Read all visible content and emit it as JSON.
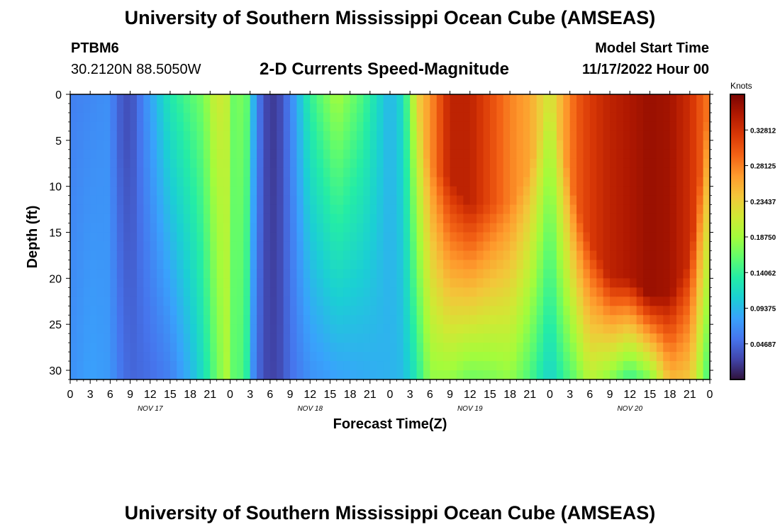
{
  "header": {
    "title": "University of Southern Mississippi Ocean Cube (AMSEAS)",
    "station_id": "PTBM6",
    "coordinates": "30.2120N  88.5050W",
    "subtitle": "2-D Currents Speed-Magnitude",
    "start_label": "Model Start Time",
    "start_value": "11/17/2022 Hour 00"
  },
  "footer": {
    "title": "University of Southern Mississippi Ocean Cube (AMSEAS)"
  },
  "chart_data": {
    "type": "heatmap",
    "title": "2-D Currents Speed-Magnitude",
    "xlabel": "Forecast Time(Z)",
    "ylabel": "Depth (ft)",
    "x_range_hours": [
      0,
      96
    ],
    "y_range_ft": [
      0,
      31
    ],
    "y_inverted": true,
    "xticks": [
      "0",
      "3",
      "6",
      "9",
      "12",
      "15",
      "18",
      "21",
      "0",
      "3",
      "6",
      "9",
      "12",
      "15",
      "18",
      "21",
      "0",
      "3",
      "6",
      "9",
      "12",
      "15",
      "18",
      "21",
      "0",
      "3",
      "6",
      "9",
      "12",
      "15",
      "18",
      "21",
      "0"
    ],
    "yticks": [
      0,
      5,
      10,
      15,
      20,
      25,
      30
    ],
    "day_labels": [
      {
        "label": "NOV 17",
        "hour": 12
      },
      {
        "label": "NOV 18",
        "hour": 36
      },
      {
        "label": "NOV 19",
        "hour": 60
      },
      {
        "label": "NOV 20",
        "hour": 84
      }
    ],
    "colorbar": {
      "unit": "Knots",
      "min": 0.0,
      "max": 0.375,
      "ticks": [
        "0.32812",
        "0.28125",
        "0.23437",
        "0.18750",
        "0.14062",
        "0.09375",
        "0.04687"
      ],
      "tick_values": [
        0.32812,
        0.28125,
        0.23437,
        0.1875,
        0.14062,
        0.09375,
        0.04687
      ],
      "colors": [
        "#30123b",
        "#4145ab",
        "#4675ed",
        "#39a2fc",
        "#1bcfd4",
        "#24eca6",
        "#61fc6c",
        "#a4fc3b",
        "#d1e834",
        "#f3c63a",
        "#fe9b2d",
        "#f36315",
        "#d93806",
        "#b11901",
        "#7a0402"
      ]
    },
    "time_profile_hours": [
      0,
      3,
      6,
      7,
      9,
      12,
      15,
      18,
      20,
      22,
      24,
      25,
      26,
      27,
      29,
      31,
      33,
      36,
      40,
      44,
      48,
      50,
      52,
      54,
      57,
      60,
      63,
      66,
      69,
      72,
      74,
      76,
      78,
      81,
      84,
      87,
      90,
      93,
      96
    ],
    "speed_surface_knots": [
      0.06,
      0.065,
      0.07,
      0.045,
      0.03,
      0.08,
      0.13,
      0.155,
      0.17,
      0.215,
      0.2,
      0.13,
      0.21,
      0.11,
      0.03,
      0.02,
      0.06,
      0.14,
      0.19,
      0.15,
      0.09,
      0.12,
      0.23,
      0.27,
      0.34,
      0.34,
      0.31,
      0.28,
      0.26,
      0.21,
      0.26,
      0.3,
      0.32,
      0.34,
      0.35,
      0.36,
      0.355,
      0.33,
      0.28
    ],
    "speed_bottom_knots": [
      0.07,
      0.08,
      0.075,
      0.06,
      0.045,
      0.05,
      0.06,
      0.09,
      0.12,
      0.165,
      0.2,
      0.12,
      0.19,
      0.08,
      0.03,
      0.025,
      0.05,
      0.07,
      0.08,
      0.085,
      0.09,
      0.095,
      0.13,
      0.18,
      0.18,
      0.165,
      0.17,
      0.18,
      0.15,
      0.11,
      0.14,
      0.165,
      0.2,
      0.175,
      0.14,
      0.17,
      0.25,
      0.24,
      0.14
    ],
    "surface_layer_depth_ft": [
      0,
      0,
      0,
      6,
      5,
      0,
      0,
      0,
      0,
      0,
      0,
      0,
      0,
      0,
      8,
      6,
      0,
      0,
      0,
      0,
      0,
      0,
      0,
      8,
      9,
      12,
      12,
      12,
      8,
      0,
      6,
      12,
      16,
      20,
      20,
      22,
      22,
      18,
      0
    ]
  }
}
